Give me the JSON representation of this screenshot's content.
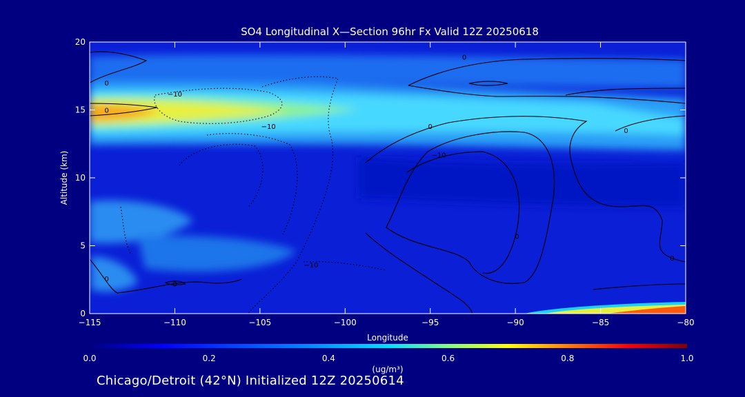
{
  "chart_data": {
    "type": "heatmap",
    "title": "SO4 Longitudinal X—Section 96hr  Fx Valid 12Z 20250618",
    "xlabel": "Longitude",
    "ylabel": "Altitude (km)",
    "xlim": [
      -115,
      -80
    ],
    "ylim": [
      0,
      20
    ],
    "x_ticks": [
      -115,
      -110,
      -105,
      -100,
      -95,
      -90,
      -85,
      -80
    ],
    "x_tick_labels": [
      "−115",
      "−110",
      "−105",
      "−100",
      "−95",
      "−90",
      "−85",
      "−80"
    ],
    "y_ticks": [
      0,
      5,
      10,
      15,
      20
    ],
    "y_tick_labels": [
      "0",
      "5",
      "10",
      "15",
      "20"
    ],
    "colorbar": {
      "min": 0.0,
      "max": 1.0,
      "ticks": [
        0.0,
        0.2,
        0.4,
        0.6,
        0.8,
        1.0
      ],
      "tick_labels": [
        "0.0",
        "0.2",
        "0.4",
        "0.6",
        "0.8",
        "1.0"
      ],
      "label": "(ug/m³)"
    },
    "field_regions": [
      {
        "lon_range": [
          -115,
          -80
        ],
        "alt_range": [
          0,
          20
        ],
        "value": 0.1
      },
      {
        "lon_range": [
          -115,
          -80
        ],
        "alt_range": [
          16,
          18
        ],
        "value": 0.25
      },
      {
        "lon_range": [
          -115,
          -80
        ],
        "alt_range": [
          12,
          16
        ],
        "value": 0.45
      },
      {
        "lon_range": [
          -115,
          -100
        ],
        "alt_range": [
          13.5,
          16
        ],
        "value": 0.58
      },
      {
        "lon_range": [
          -115,
          -110
        ],
        "alt_range": [
          14,
          15.5
        ],
        "value": 0.68
      },
      {
        "lon_range": [
          -115,
          -107
        ],
        "alt_range": [
          5.5,
          8
        ],
        "value": 0.28
      },
      {
        "lon_range": [
          -112,
          -103
        ],
        "alt_range": [
          3.5,
          5.5
        ],
        "value": 0.22
      },
      {
        "lon_range": [
          -115,
          -112
        ],
        "alt_range": [
          1.5,
          4
        ],
        "value": 0.25
      },
      {
        "lon_range": [
          -90,
          -80
        ],
        "alt_range": [
          0,
          0.8
        ],
        "value": 0.7
      }
    ],
    "contour_labels": [
      {
        "text": "0",
        "lon": -114,
        "alt": 17
      },
      {
        "text": "0",
        "lon": -114,
        "alt": 15
      },
      {
        "text": "−10",
        "lon": -110,
        "alt": 16.2
      },
      {
        "text": "−10",
        "lon": -104.5,
        "alt": 13.8
      },
      {
        "text": "0",
        "lon": -95,
        "alt": 13.8
      },
      {
        "text": "−10",
        "lon": -94.5,
        "alt": 11.7
      },
      {
        "text": "0",
        "lon": -93,
        "alt": 18.9
      },
      {
        "text": "0",
        "lon": -83.5,
        "alt": 13.5
      },
      {
        "text": "0",
        "lon": -89.9,
        "alt": 5.7
      },
      {
        "text": "0",
        "lon": -80.8,
        "alt": 4.1
      },
      {
        "text": "0",
        "lon": -114,
        "alt": 2.6
      },
      {
        "text": "−10",
        "lon": -102,
        "alt": 3.6
      },
      {
        "text": "0",
        "lon": -110,
        "alt": 2.2
      }
    ]
  },
  "footer_text": "Chicago/Detroit (42°N) Initialized 12Z 20250614"
}
